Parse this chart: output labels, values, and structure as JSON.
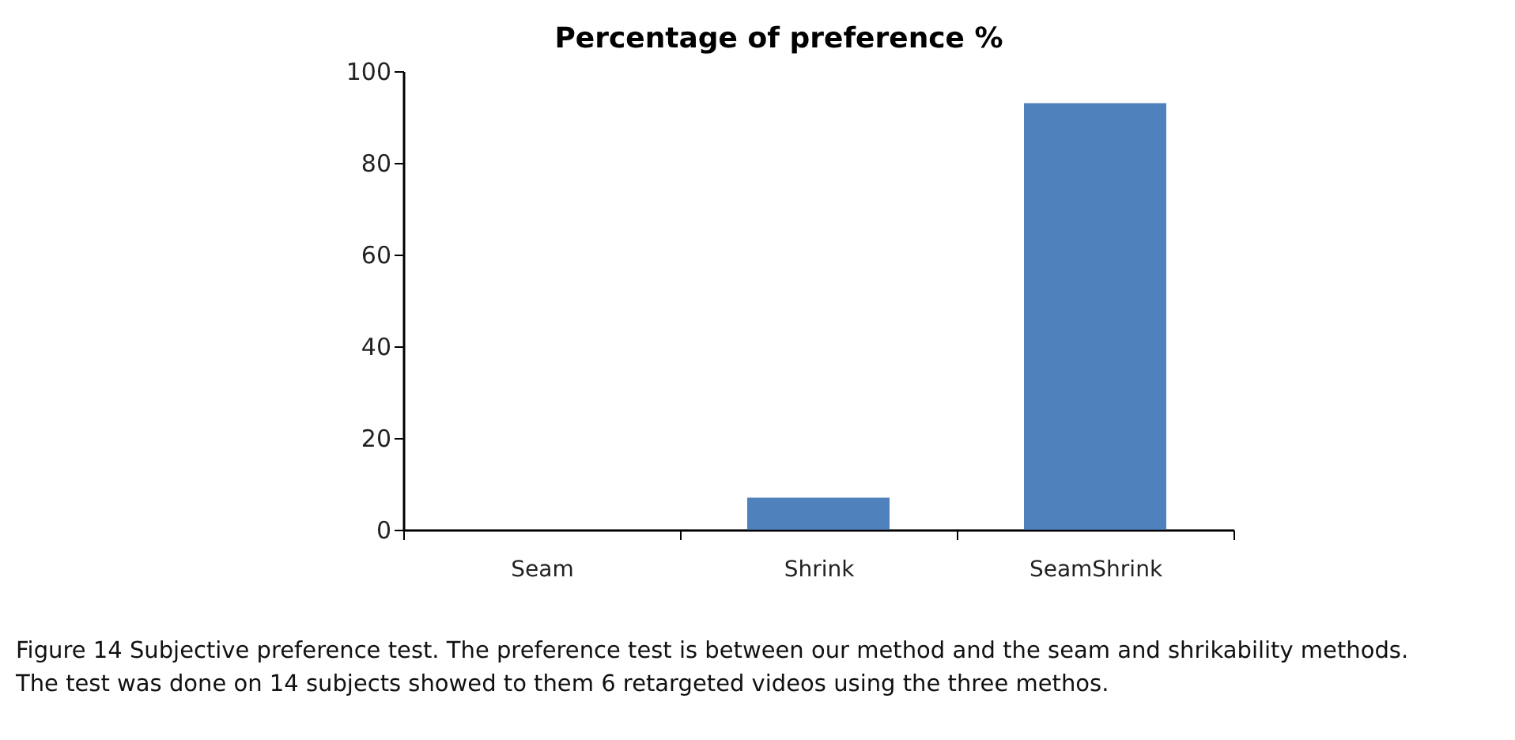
{
  "chart_data": {
    "type": "bar",
    "title": "Percentage of preference %",
    "categories": [
      "Seam",
      "Shrink",
      "SeamShrink"
    ],
    "values": [
      0,
      7,
      93
    ],
    "color": "#4f81bd",
    "ylim": [
      0,
      100
    ],
    "yticks": [
      0,
      20,
      40,
      60,
      80,
      100
    ],
    "grid": false,
    "annotations": [
      "Figure 14 Subjective preference test. The preference test is between our method and the seam and shrikability methods. The test was done on 14 subjects showed to them 6 retargeted videos using the three methos."
    ]
  }
}
